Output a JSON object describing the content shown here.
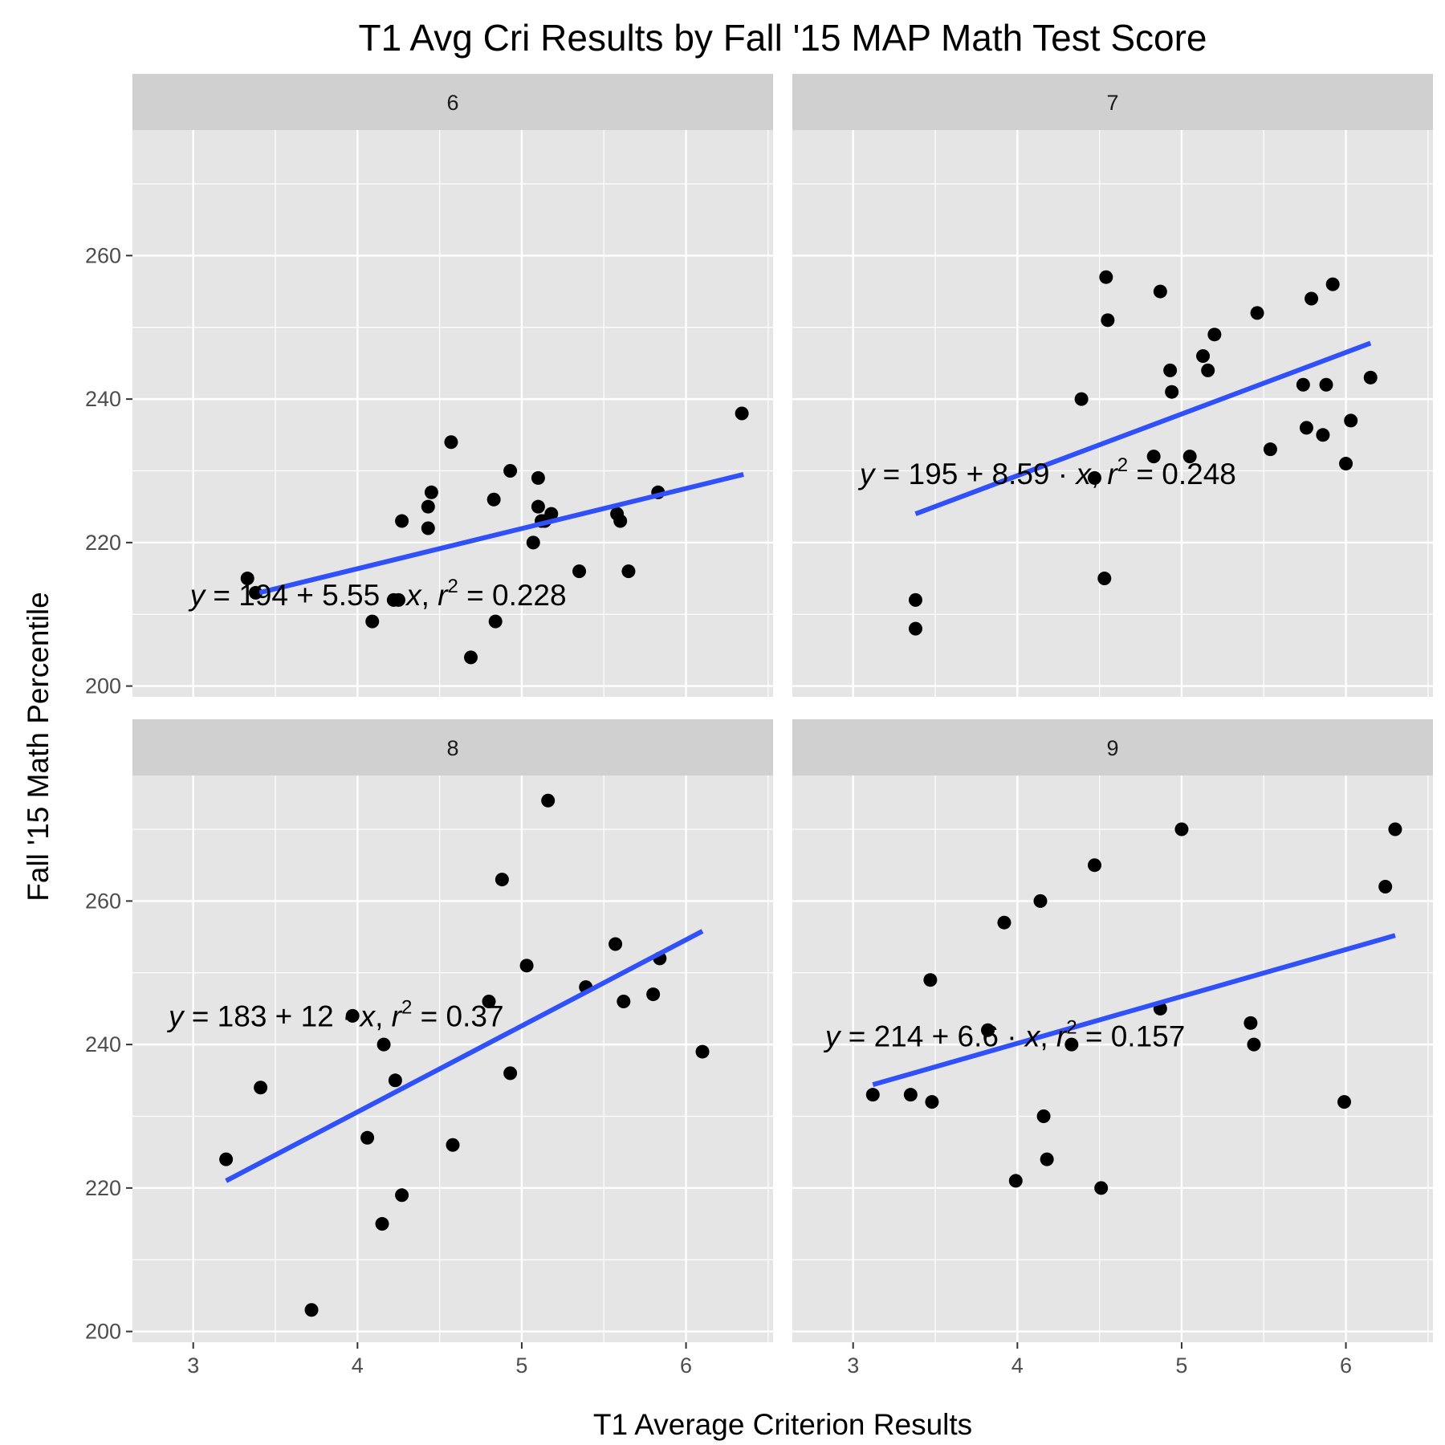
{
  "chart_data": {
    "type": "scatter",
    "title": "T1 Avg Cri Results by Fall '15 MAP Math Test Score",
    "xlabel": "T1 Average Criterion Results",
    "ylabel": "Fall '15 Math Percentile",
    "xlim": [
      2.63,
      6.53
    ],
    "ylim": [
      198.5,
      277.5
    ],
    "x_ticks": [
      3,
      4,
      5,
      6
    ],
    "y_ticks": [
      200,
      220,
      240,
      260
    ],
    "grid": true,
    "colors": {
      "panel_background": "#e5e5e5",
      "strip_background": "#d0d0d0",
      "gridline": "#ffffff",
      "point": "#000000",
      "fit_line": "#3050f8"
    },
    "panels": [
      {
        "facet": "6",
        "equation": {
          "intercept": "194",
          "slope": "5.55",
          "r2": "0.228"
        },
        "fit": {
          "x": [
            3.4,
            6.35
          ],
          "y": [
            213.0,
            229.5
          ]
        },
        "points": [
          [
            3.33,
            215
          ],
          [
            3.38,
            213
          ],
          [
            4.09,
            209
          ],
          [
            4.22,
            212
          ],
          [
            4.25,
            212
          ],
          [
            4.27,
            223
          ],
          [
            4.43,
            225
          ],
          [
            4.43,
            222
          ],
          [
            4.45,
            227
          ],
          [
            4.57,
            234
          ],
          [
            4.69,
            204
          ],
          [
            4.83,
            226
          ],
          [
            4.84,
            209
          ],
          [
            4.93,
            230
          ],
          [
            5.07,
            220
          ],
          [
            5.1,
            229
          ],
          [
            5.1,
            225
          ],
          [
            5.12,
            223
          ],
          [
            5.14,
            223
          ],
          [
            5.18,
            224
          ],
          [
            5.35,
            216
          ],
          [
            5.58,
            224
          ],
          [
            5.6,
            223
          ],
          [
            5.65,
            216
          ],
          [
            5.83,
            227
          ],
          [
            6.34,
            238
          ]
        ]
      },
      {
        "facet": "7",
        "equation": {
          "intercept": "195",
          "slope": "8.59",
          "r2": "0.248"
        },
        "fit": {
          "x": [
            3.38,
            6.15
          ],
          "y": [
            224.0,
            247.8
          ]
        },
        "points": [
          [
            3.38,
            212
          ],
          [
            3.38,
            208
          ],
          [
            4.39,
            240
          ],
          [
            4.47,
            229
          ],
          [
            4.53,
            215
          ],
          [
            4.54,
            257
          ],
          [
            4.55,
            251
          ],
          [
            4.83,
            232
          ],
          [
            4.87,
            255
          ],
          [
            4.93,
            244
          ],
          [
            4.94,
            241
          ],
          [
            5.05,
            232
          ],
          [
            5.13,
            246
          ],
          [
            5.16,
            244
          ],
          [
            5.2,
            249
          ],
          [
            5.46,
            252
          ],
          [
            5.54,
            233
          ],
          [
            5.74,
            242
          ],
          [
            5.76,
            236
          ],
          [
            5.79,
            254
          ],
          [
            5.86,
            235
          ],
          [
            5.88,
            242
          ],
          [
            5.92,
            256
          ],
          [
            6.0,
            231
          ],
          [
            6.03,
            237
          ],
          [
            6.15,
            243
          ]
        ]
      },
      {
        "facet": "8",
        "equation": {
          "intercept": "183",
          "slope": "12",
          "r2": "0.37"
        },
        "fit": {
          "x": [
            3.2,
            6.1
          ],
          "y": [
            221.0,
            255.8
          ]
        },
        "points": [
          [
            3.2,
            224
          ],
          [
            3.41,
            234
          ],
          [
            3.72,
            203
          ],
          [
            3.97,
            244
          ],
          [
            4.06,
            227
          ],
          [
            4.15,
            215
          ],
          [
            4.16,
            240
          ],
          [
            4.23,
            235
          ],
          [
            4.27,
            219
          ],
          [
            4.58,
            226
          ],
          [
            4.8,
            246
          ],
          [
            4.88,
            263
          ],
          [
            4.93,
            236
          ],
          [
            5.03,
            251
          ],
          [
            5.16,
            274
          ],
          [
            5.39,
            248
          ],
          [
            5.57,
            254
          ],
          [
            5.62,
            246
          ],
          [
            5.8,
            247
          ],
          [
            5.84,
            252
          ],
          [
            6.1,
            239
          ]
        ]
      },
      {
        "facet": "9",
        "equation": {
          "intercept": "214",
          "slope": "6.6",
          "r2": "0.157"
        },
        "fit": {
          "x": [
            3.12,
            6.3
          ],
          "y": [
            234.4,
            255.2
          ]
        },
        "points": [
          [
            3.12,
            233
          ],
          [
            3.35,
            233
          ],
          [
            3.47,
            249
          ],
          [
            3.48,
            232
          ],
          [
            3.82,
            242
          ],
          [
            3.92,
            257
          ],
          [
            3.99,
            221
          ],
          [
            4.14,
            260
          ],
          [
            4.16,
            230
          ],
          [
            4.18,
            224
          ],
          [
            4.33,
            240
          ],
          [
            4.47,
            265
          ],
          [
            4.51,
            220
          ],
          [
            4.87,
            245
          ],
          [
            5.0,
            270
          ],
          [
            5.42,
            243
          ],
          [
            5.44,
            240
          ],
          [
            5.99,
            232
          ],
          [
            6.24,
            262
          ],
          [
            6.3,
            270
          ]
        ]
      }
    ]
  }
}
